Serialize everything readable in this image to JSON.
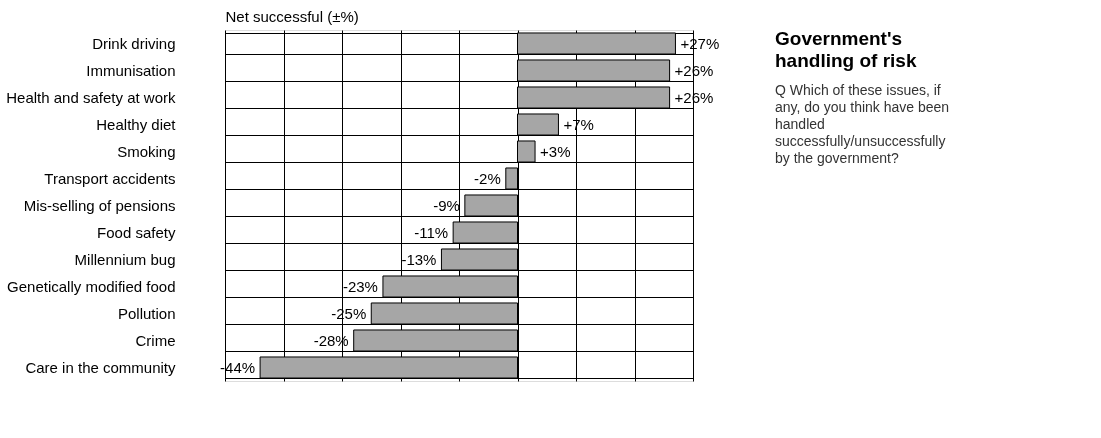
{
  "chart_data": {
    "type": "bar",
    "orientation": "horizontal",
    "title": "Government's handling of risk",
    "subtitle": "Q Which of these issues, if any, do you think have been handled successfully/unsuccessfully by the government?",
    "xlabel": "Net successful (±%)",
    "categories": [
      "Drink driving",
      "Immunisation",
      "Health and safety at work",
      "Healthy diet",
      "Smoking",
      "Transport accidents",
      "Mis-selling of pensions",
      "Food safety",
      "Millennium bug",
      "Genetically modified food",
      "Pollution",
      "Crime",
      "Care in the community"
    ],
    "values": [
      27,
      26,
      26,
      7,
      3,
      -2,
      -9,
      -11,
      -13,
      -23,
      -25,
      -28,
      -44
    ],
    "value_labels": [
      "+27%",
      "+26%",
      "+26%",
      "+7%",
      "+3%",
      "-2%",
      "-9%",
      "-11%",
      "-13%",
      "-23%",
      "-25%",
      "-28%",
      "-44%"
    ],
    "color": "#a6a6a6",
    "xlim": [
      -50,
      30
    ],
    "xticks": [
      {
        "value": -50,
        "label": null
      },
      {
        "value": -40,
        "label": null
      },
      {
        "value": -30,
        "label": null
      },
      {
        "value": -20,
        "label": null
      },
      {
        "value": -10,
        "label": null
      },
      {
        "value": 0,
        "label": null
      },
      {
        "value": 10,
        "label": null
      },
      {
        "value": 20,
        "label": null
      },
      {
        "value": 30,
        "label": null
      }
    ],
    "grid": true,
    "tick_labels": "y"
  }
}
